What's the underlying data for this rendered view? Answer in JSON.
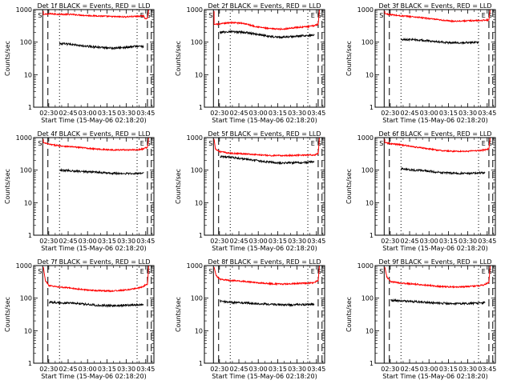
{
  "figure": {
    "time_label": "Start Time (15-May-06 02:18:20)",
    "x_ticks": [
      "02:30",
      "02:45",
      "03:00",
      "03:15",
      "03:30",
      "03:45"
    ],
    "y_ticks": [
      "1",
      "10",
      "100",
      "1000"
    ],
    "ylabel": "Counts/sec",
    "series_names": [
      "Events (black)",
      "LLD (red)"
    ],
    "colors": {
      "events": "#000000",
      "lld": "#ff0000",
      "axes": "#000000",
      "background": "#ffffff"
    },
    "marker_labels": {
      "S": "S",
      "E": "E"
    }
  },
  "chart_data": [
    {
      "type": "line",
      "title": "Det 1f BLACK = Events, RED = LLD",
      "xlabel": "Start Time (15-May-06 02:18:20)",
      "ylabel": "Counts/sec",
      "ylim": [
        1,
        1000
      ],
      "x_range_minutes": [
        0,
        93
      ],
      "markers": {
        "S_left": 7,
        "dashed_left": 11,
        "dotted_left": 20,
        "dotted_right": 80,
        "E": 86,
        "dashed_right": 88,
        "S_right": 91
      },
      "lld": {
        "start": 900,
        "end": 1000,
        "path": [
          [
            7.5,
            700
          ],
          [
            12,
            740
          ],
          [
            20,
            720
          ],
          [
            30,
            710
          ],
          [
            40,
            660
          ],
          [
            50,
            640
          ],
          [
            60,
            610
          ],
          [
            70,
            600
          ],
          [
            80,
            620
          ],
          [
            85,
            640
          ],
          [
            86,
            540
          ],
          [
            88,
            540
          ],
          [
            89,
            1000
          ]
        ]
      },
      "events": {
        "path": [
          [
            20,
            90
          ],
          [
            30,
            85
          ],
          [
            40,
            75
          ],
          [
            50,
            70
          ],
          [
            60,
            65
          ],
          [
            70,
            68
          ],
          [
            80,
            75
          ],
          [
            85,
            72
          ]
        ]
      }
    },
    {
      "type": "line",
      "title": "Det 2f BLACK = Events, RED = LLD",
      "xlabel": "Start Time (15-May-06 02:18:20)",
      "ylabel": "Counts/sec",
      "ylim": [
        1,
        1000
      ],
      "x_range_minutes": [
        0,
        93
      ],
      "markers": {
        "S_left": 7,
        "dashed_left": 11,
        "dotted_left": 20,
        "dotted_right": 80,
        "E": 86,
        "dashed_right": 88,
        "S_right": 91
      },
      "lld": {
        "start": 900,
        "end": 1000,
        "path": [
          [
            7.5,
            350
          ],
          [
            12,
            360
          ],
          [
            20,
            400
          ],
          [
            30,
            380
          ],
          [
            40,
            300
          ],
          [
            50,
            260
          ],
          [
            60,
            250
          ],
          [
            70,
            280
          ],
          [
            80,
            300
          ],
          [
            85,
            320
          ],
          [
            86,
            340
          ],
          [
            88,
            350
          ],
          [
            89,
            1000
          ]
        ]
      },
      "events": {
        "path": [
          [
            12,
            200
          ],
          [
            20,
            210
          ],
          [
            30,
            200
          ],
          [
            40,
            180
          ],
          [
            50,
            150
          ],
          [
            60,
            140
          ],
          [
            70,
            150
          ],
          [
            80,
            160
          ],
          [
            85,
            170
          ]
        ]
      }
    },
    {
      "type": "line",
      "title": "Det 3f BLACK = Events, RED = LLD",
      "xlabel": "Start Time (15-May-06 02:18:20)",
      "ylabel": "Counts/sec",
      "ylim": [
        1,
        1000
      ],
      "x_range_minutes": [
        0,
        93
      ],
      "markers": {
        "S_left": 7,
        "dashed_left": 11,
        "dotted_left": 20,
        "dotted_right": 80,
        "E": 86,
        "dashed_right": 88,
        "S_right": 91
      },
      "lld": {
        "start": 900,
        "end": 1000,
        "path": [
          [
            7.5,
            750
          ],
          [
            12,
            700
          ],
          [
            20,
            640
          ],
          [
            30,
            600
          ],
          [
            40,
            540
          ],
          [
            50,
            480
          ],
          [
            60,
            440
          ],
          [
            70,
            450
          ],
          [
            80,
            460
          ],
          [
            85,
            470
          ],
          [
            86,
            480
          ],
          [
            88,
            480
          ],
          [
            89,
            1000
          ]
        ]
      },
      "events": {
        "path": [
          [
            20,
            120
          ],
          [
            30,
            120
          ],
          [
            40,
            110
          ],
          [
            50,
            100
          ],
          [
            60,
            95
          ],
          [
            70,
            98
          ],
          [
            80,
            100
          ]
        ]
      }
    },
    {
      "type": "line",
      "title": "Det 4f BLACK = Events, RED = LLD",
      "xlabel": "Start Time (15-May-06 02:18:20)",
      "ylabel": "Counts/sec",
      "ylim": [
        1,
        1000
      ],
      "x_range_minutes": [
        0,
        93
      ],
      "markers": {
        "S_left": 7,
        "dashed_left": 11,
        "dotted_left": 20,
        "dotted_right": 80,
        "E": 86,
        "dashed_right": 88,
        "S_right": 91
      },
      "lld": {
        "start": 900,
        "end": 1000,
        "path": [
          [
            7.5,
            700
          ],
          [
            12,
            620
          ],
          [
            20,
            560
          ],
          [
            30,
            520
          ],
          [
            40,
            480
          ],
          [
            50,
            440
          ],
          [
            60,
            420
          ],
          [
            70,
            420
          ],
          [
            80,
            420
          ],
          [
            85,
            450
          ],
          [
            86,
            480
          ],
          [
            88,
            500
          ],
          [
            89,
            1000
          ]
        ]
      },
      "events": {
        "path": [
          [
            20,
            100
          ],
          [
            30,
            95
          ],
          [
            40,
            90
          ],
          [
            50,
            85
          ],
          [
            60,
            80
          ],
          [
            70,
            78
          ],
          [
            80,
            80
          ],
          [
            85,
            82
          ]
        ]
      }
    },
    {
      "type": "line",
      "title": "Det 5f BLACK = Events, RED = LLD",
      "xlabel": "Start Time (15-May-06 02:18:20)",
      "ylabel": "Counts/sec",
      "ylim": [
        1,
        1000
      ],
      "x_range_minutes": [
        0,
        93
      ],
      "markers": {
        "S_left": 7,
        "dashed_left": 11,
        "dotted_left": 20,
        "dotted_right": 80,
        "E": 86,
        "dashed_right": 88,
        "S_right": 91
      },
      "lld": {
        "start": 900,
        "end": 1000,
        "path": [
          [
            7.5,
            900
          ],
          [
            8.5,
            450
          ],
          [
            12,
            370
          ],
          [
            20,
            330
          ],
          [
            30,
            320
          ],
          [
            40,
            300
          ],
          [
            50,
            280
          ],
          [
            60,
            280
          ],
          [
            70,
            285
          ],
          [
            80,
            290
          ],
          [
            85,
            295
          ],
          [
            86,
            300
          ],
          [
            88,
            320
          ],
          [
            89,
            1000
          ]
        ]
      },
      "events": {
        "path": [
          [
            12,
            260
          ],
          [
            20,
            250
          ],
          [
            30,
            220
          ],
          [
            40,
            200
          ],
          [
            50,
            175
          ],
          [
            60,
            165
          ],
          [
            70,
            170
          ],
          [
            80,
            175
          ],
          [
            85,
            178
          ]
        ]
      }
    },
    {
      "type": "line",
      "title": "Det 6f BLACK = Events, RED = LLD",
      "xlabel": "Start Time (15-May-06 02:18:20)",
      "ylabel": "Counts/sec",
      "ylim": [
        1,
        1000
      ],
      "x_range_minutes": [
        0,
        93
      ],
      "markers": {
        "S_left": 7,
        "dashed_left": 11,
        "dotted_left": 20,
        "dotted_right": 80,
        "E": 86,
        "dashed_right": 88,
        "S_right": 91
      },
      "lld": {
        "start": 900,
        "end": 1000,
        "path": [
          [
            7.5,
            700
          ],
          [
            12,
            650
          ],
          [
            20,
            600
          ],
          [
            30,
            520
          ],
          [
            40,
            460
          ],
          [
            50,
            400
          ],
          [
            60,
            380
          ],
          [
            70,
            380
          ],
          [
            80,
            400
          ],
          [
            85,
            420
          ],
          [
            86,
            430
          ],
          [
            88,
            450
          ],
          [
            89,
            1000
          ]
        ]
      },
      "events": {
        "path": [
          [
            20,
            110
          ],
          [
            30,
            100
          ],
          [
            40,
            95
          ],
          [
            50,
            85
          ],
          [
            60,
            80
          ],
          [
            70,
            80
          ],
          [
            80,
            82
          ],
          [
            85,
            84
          ]
        ]
      }
    },
    {
      "type": "line",
      "title": "Det 7f BLACK = Events, RED = LLD",
      "xlabel": "Start Time (15-May-06 02:18:20)",
      "ylabel": "Counts/sec",
      "ylim": [
        1,
        1000
      ],
      "x_range_minutes": [
        0,
        93
      ],
      "markers": {
        "S_left": 7,
        "dashed_left": 11,
        "dotted_left": 20,
        "dotted_right": 80,
        "E": 86,
        "dashed_right": 88,
        "S_right": 91
      },
      "lld": {
        "start": 900,
        "end": 1000,
        "path": [
          [
            7.5,
            900
          ],
          [
            9,
            350
          ],
          [
            12,
            240
          ],
          [
            20,
            220
          ],
          [
            30,
            200
          ],
          [
            40,
            180
          ],
          [
            50,
            170
          ],
          [
            60,
            165
          ],
          [
            70,
            175
          ],
          [
            80,
            200
          ],
          [
            85,
            230
          ],
          [
            86,
            250
          ],
          [
            88,
            260
          ],
          [
            89,
            1000
          ]
        ]
      },
      "events": {
        "path": [
          [
            12,
            75
          ],
          [
            20,
            72
          ],
          [
            30,
            70
          ],
          [
            40,
            65
          ],
          [
            50,
            60
          ],
          [
            60,
            58
          ],
          [
            70,
            60
          ],
          [
            80,
            62
          ],
          [
            85,
            65
          ]
        ]
      }
    },
    {
      "type": "line",
      "title": "Det 8f BLACK = Events, RED = LLD",
      "xlabel": "Start Time (15-May-06 02:18:20)",
      "ylabel": "Counts/sec",
      "ylim": [
        1,
        1000
      ],
      "x_range_minutes": [
        0,
        93
      ],
      "markers": {
        "S_left": 7,
        "dashed_left": 11,
        "dotted_left": 20,
        "dotted_right": 80,
        "E": 86,
        "dashed_right": 88,
        "S_right": 91
      },
      "lld": {
        "start": 900,
        "end": 1000,
        "path": [
          [
            7.5,
            900
          ],
          [
            9,
            500
          ],
          [
            12,
            380
          ],
          [
            20,
            350
          ],
          [
            30,
            330
          ],
          [
            40,
            300
          ],
          [
            50,
            280
          ],
          [
            60,
            270
          ],
          [
            70,
            280
          ],
          [
            80,
            290
          ],
          [
            85,
            300
          ],
          [
            86,
            320
          ],
          [
            88,
            340
          ],
          [
            89,
            1000
          ]
        ]
      },
      "events": {
        "path": [
          [
            12,
            80
          ],
          [
            20,
            75
          ],
          [
            30,
            72
          ],
          [
            40,
            68
          ],
          [
            50,
            65
          ],
          [
            60,
            62
          ],
          [
            70,
            62
          ],
          [
            80,
            64
          ],
          [
            85,
            66
          ]
        ]
      }
    },
    {
      "type": "line",
      "title": "Det 9f BLACK = Events, RED = LLD",
      "xlabel": "Start Time (15-May-06 02:18:20)",
      "ylabel": "Counts/sec",
      "ylim": [
        1,
        1000
      ],
      "x_range_minutes": [
        0,
        93
      ],
      "markers": {
        "S_left": 7,
        "dashed_left": 11,
        "dotted_left": 20,
        "dotted_right": 80,
        "E": 86,
        "dashed_right": 88,
        "S_right": 91
      },
      "lld": {
        "start": 900,
        "end": 1000,
        "path": [
          [
            7.5,
            900
          ],
          [
            9,
            450
          ],
          [
            12,
            320
          ],
          [
            20,
            290
          ],
          [
            30,
            270
          ],
          [
            40,
            250
          ],
          [
            50,
            230
          ],
          [
            60,
            220
          ],
          [
            70,
            225
          ],
          [
            80,
            240
          ],
          [
            85,
            260
          ],
          [
            86,
            280
          ],
          [
            88,
            300
          ],
          [
            89,
            1000
          ]
        ]
      },
      "events": {
        "path": [
          [
            12,
            85
          ],
          [
            20,
            82
          ],
          [
            30,
            78
          ],
          [
            40,
            74
          ],
          [
            50,
            70
          ],
          [
            60,
            68
          ],
          [
            70,
            68
          ],
          [
            80,
            70
          ],
          [
            85,
            72
          ]
        ]
      }
    }
  ]
}
